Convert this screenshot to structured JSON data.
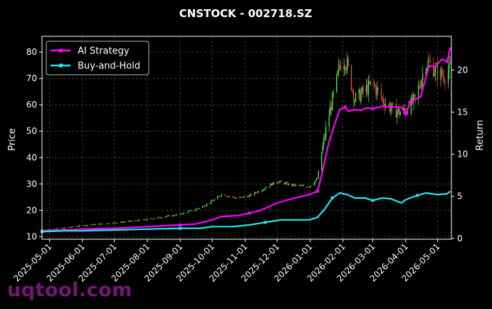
{
  "chart_data": {
    "type": "line",
    "title": "CNSTOCK - 002718.SZ",
    "ylabel": "Price",
    "y2label": "Return",
    "ylim": [
      9,
      86
    ],
    "y2lim": [
      -0.1,
      24.0
    ],
    "yticks": [
      10,
      20,
      30,
      40,
      50,
      60,
      70,
      80
    ],
    "y2ticks": [
      0,
      5,
      10,
      15,
      20
    ],
    "x_range": [
      "2025-04-24",
      "2026-05-14"
    ],
    "xticks": [
      "2025-05-01",
      "2025-06-01",
      "2025-07-01",
      "2025-08-01",
      "2025-09-01",
      "2025-10-01",
      "2025-11-01",
      "2025-12-01",
      "2026-01-01",
      "2026-02-01",
      "2026-03-01",
      "2026-04-01",
      "2026-05-01"
    ],
    "grid": true,
    "legend_position": "top-left",
    "series": [
      {
        "name": "AI Strategy",
        "color": "#ff00ff",
        "axis": "right",
        "points": [
          [
            "2025-04-24",
            0.9
          ],
          [
            "2025-05-15",
            1.0
          ],
          [
            "2025-06-01",
            1.1
          ],
          [
            "2025-07-01",
            1.2
          ],
          [
            "2025-08-01",
            1.4
          ],
          [
            "2025-09-01",
            1.6
          ],
          [
            "2025-09-15",
            1.7
          ],
          [
            "2025-10-01",
            2.2
          ],
          [
            "2025-10-10",
            2.6
          ],
          [
            "2025-10-25",
            2.7
          ],
          [
            "2025-11-05",
            3.0
          ],
          [
            "2025-11-15",
            3.3
          ],
          [
            "2025-12-01",
            4.2
          ],
          [
            "2025-12-15",
            4.7
          ],
          [
            "2025-12-31",
            5.2
          ],
          [
            "2026-01-08",
            5.6
          ],
          [
            "2026-01-12",
            7.5
          ],
          [
            "2026-01-18",
            11.0
          ],
          [
            "2026-01-24",
            13.5
          ],
          [
            "2026-01-29",
            15.3
          ],
          [
            "2026-02-03",
            15.6
          ],
          [
            "2026-02-06",
            15.1
          ],
          [
            "2026-02-12",
            15.3
          ],
          [
            "2026-02-18",
            15.2
          ],
          [
            "2026-02-23",
            15.5
          ],
          [
            "2026-03-01",
            15.4
          ],
          [
            "2026-03-10",
            15.7
          ],
          [
            "2026-03-20",
            15.6
          ],
          [
            "2026-03-28",
            15.6
          ],
          [
            "2026-04-01",
            14.6
          ],
          [
            "2026-04-05",
            16.2
          ],
          [
            "2026-04-15",
            16.8
          ],
          [
            "2026-04-23",
            20.5
          ],
          [
            "2026-04-29",
            20.4
          ],
          [
            "2026-05-05",
            21.3
          ],
          [
            "2026-05-10",
            21.0
          ],
          [
            "2026-05-13",
            22.7
          ]
        ]
      },
      {
        "name": "Buy-and-Hold",
        "color": "#22e8ee",
        "axis": "right",
        "points": [
          [
            "2025-04-24",
            0.8
          ],
          [
            "2025-05-15",
            0.9
          ],
          [
            "2025-06-01",
            0.9
          ],
          [
            "2025-07-01",
            1.0
          ],
          [
            "2025-08-01",
            1.1
          ],
          [
            "2025-09-01",
            1.2
          ],
          [
            "2025-09-20",
            1.2
          ],
          [
            "2025-10-01",
            1.4
          ],
          [
            "2025-10-20",
            1.4
          ],
          [
            "2025-11-05",
            1.6
          ],
          [
            "2025-11-20",
            1.9
          ],
          [
            "2025-12-05",
            2.2
          ],
          [
            "2025-12-31",
            2.2
          ],
          [
            "2026-01-08",
            2.5
          ],
          [
            "2026-01-15",
            3.5
          ],
          [
            "2026-01-22",
            4.8
          ],
          [
            "2026-01-29",
            5.4
          ],
          [
            "2026-02-05",
            5.2
          ],
          [
            "2026-02-12",
            4.8
          ],
          [
            "2026-02-22",
            4.8
          ],
          [
            "2026-03-01",
            4.5
          ],
          [
            "2026-03-10",
            4.8
          ],
          [
            "2026-03-18",
            4.7
          ],
          [
            "2026-03-28",
            4.2
          ],
          [
            "2026-04-01",
            4.6
          ],
          [
            "2026-04-12",
            5.1
          ],
          [
            "2026-04-20",
            5.4
          ],
          [
            "2026-05-01",
            5.2
          ],
          [
            "2026-05-10",
            5.3
          ],
          [
            "2026-05-13",
            5.6
          ]
        ]
      }
    ],
    "price": {
      "name": "Price",
      "axis": "left",
      "up_color": "#4dff4d",
      "down_color": "#ff4d4d",
      "points": [
        [
          "2025-04-24",
          12.5
        ],
        [
          "2025-05-15",
          13.2
        ],
        [
          "2025-06-01",
          14.2
        ],
        [
          "2025-07-01",
          15.2
        ],
        [
          "2025-08-01",
          16.5
        ],
        [
          "2025-09-01",
          18.5
        ],
        [
          "2025-09-20",
          21.0
        ],
        [
          "2025-10-01",
          23.5
        ],
        [
          "2025-10-10",
          26.0
        ],
        [
          "2025-10-25",
          24.5
        ],
        [
          "2025-11-05",
          25.5
        ],
        [
          "2025-11-15",
          27.5
        ],
        [
          "2025-12-01",
          31.0
        ],
        [
          "2025-12-15",
          29.5
        ],
        [
          "2025-12-31",
          29.0
        ],
        [
          "2026-01-08",
          32.0
        ],
        [
          "2026-01-12",
          42.0
        ],
        [
          "2026-01-18",
          55.0
        ],
        [
          "2026-01-24",
          65.0
        ],
        [
          "2026-01-29",
          75.0
        ],
        [
          "2026-02-01",
          78.0
        ],
        [
          "2026-02-05",
          75.0
        ],
        [
          "2026-02-09",
          68.0
        ],
        [
          "2026-02-12",
          62.0
        ],
        [
          "2026-02-18",
          64.0
        ],
        [
          "2026-02-23",
          66.0
        ],
        [
          "2026-03-01",
          68.0
        ],
        [
          "2026-03-10",
          62.0
        ],
        [
          "2026-03-20",
          58.0
        ],
        [
          "2026-03-28",
          57.0
        ],
        [
          "2026-04-01",
          58.0
        ],
        [
          "2026-04-10",
          62.0
        ],
        [
          "2026-04-20",
          76.0
        ],
        [
          "2026-04-25",
          75.0
        ],
        [
          "2026-05-01",
          72.0
        ],
        [
          "2026-05-08",
          71.0
        ],
        [
          "2026-05-13",
          74.0
        ]
      ]
    }
  },
  "watermark": "uqtool.com"
}
